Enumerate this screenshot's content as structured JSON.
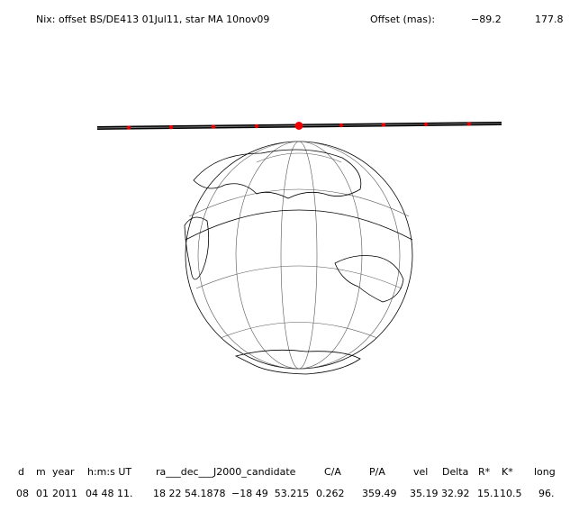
{
  "header": {
    "title": "Nix: offset BS/DE413 01Jul11, star MA 10nov09",
    "offset_label": "Offset (mas):",
    "offset_values": [
      "−89.2",
      "177.8"
    ]
  },
  "table": {
    "columns": [
      "d",
      "m",
      "year",
      "h:m:s UT",
      "ra___dec___J2000_candidate",
      "C/A",
      "P/A",
      "vel",
      "Delta",
      "R*",
      "K*",
      "long"
    ],
    "rows": [
      [
        "08",
        "01",
        "2011",
        "04 48 11.",
        "18 22 54.1878",
        "−18 49  53.215",
        "0.262",
        "359.49",
        "35.19",
        "32.92",
        "15.1",
        "10.5",
        "96."
      ]
    ]
  }
}
